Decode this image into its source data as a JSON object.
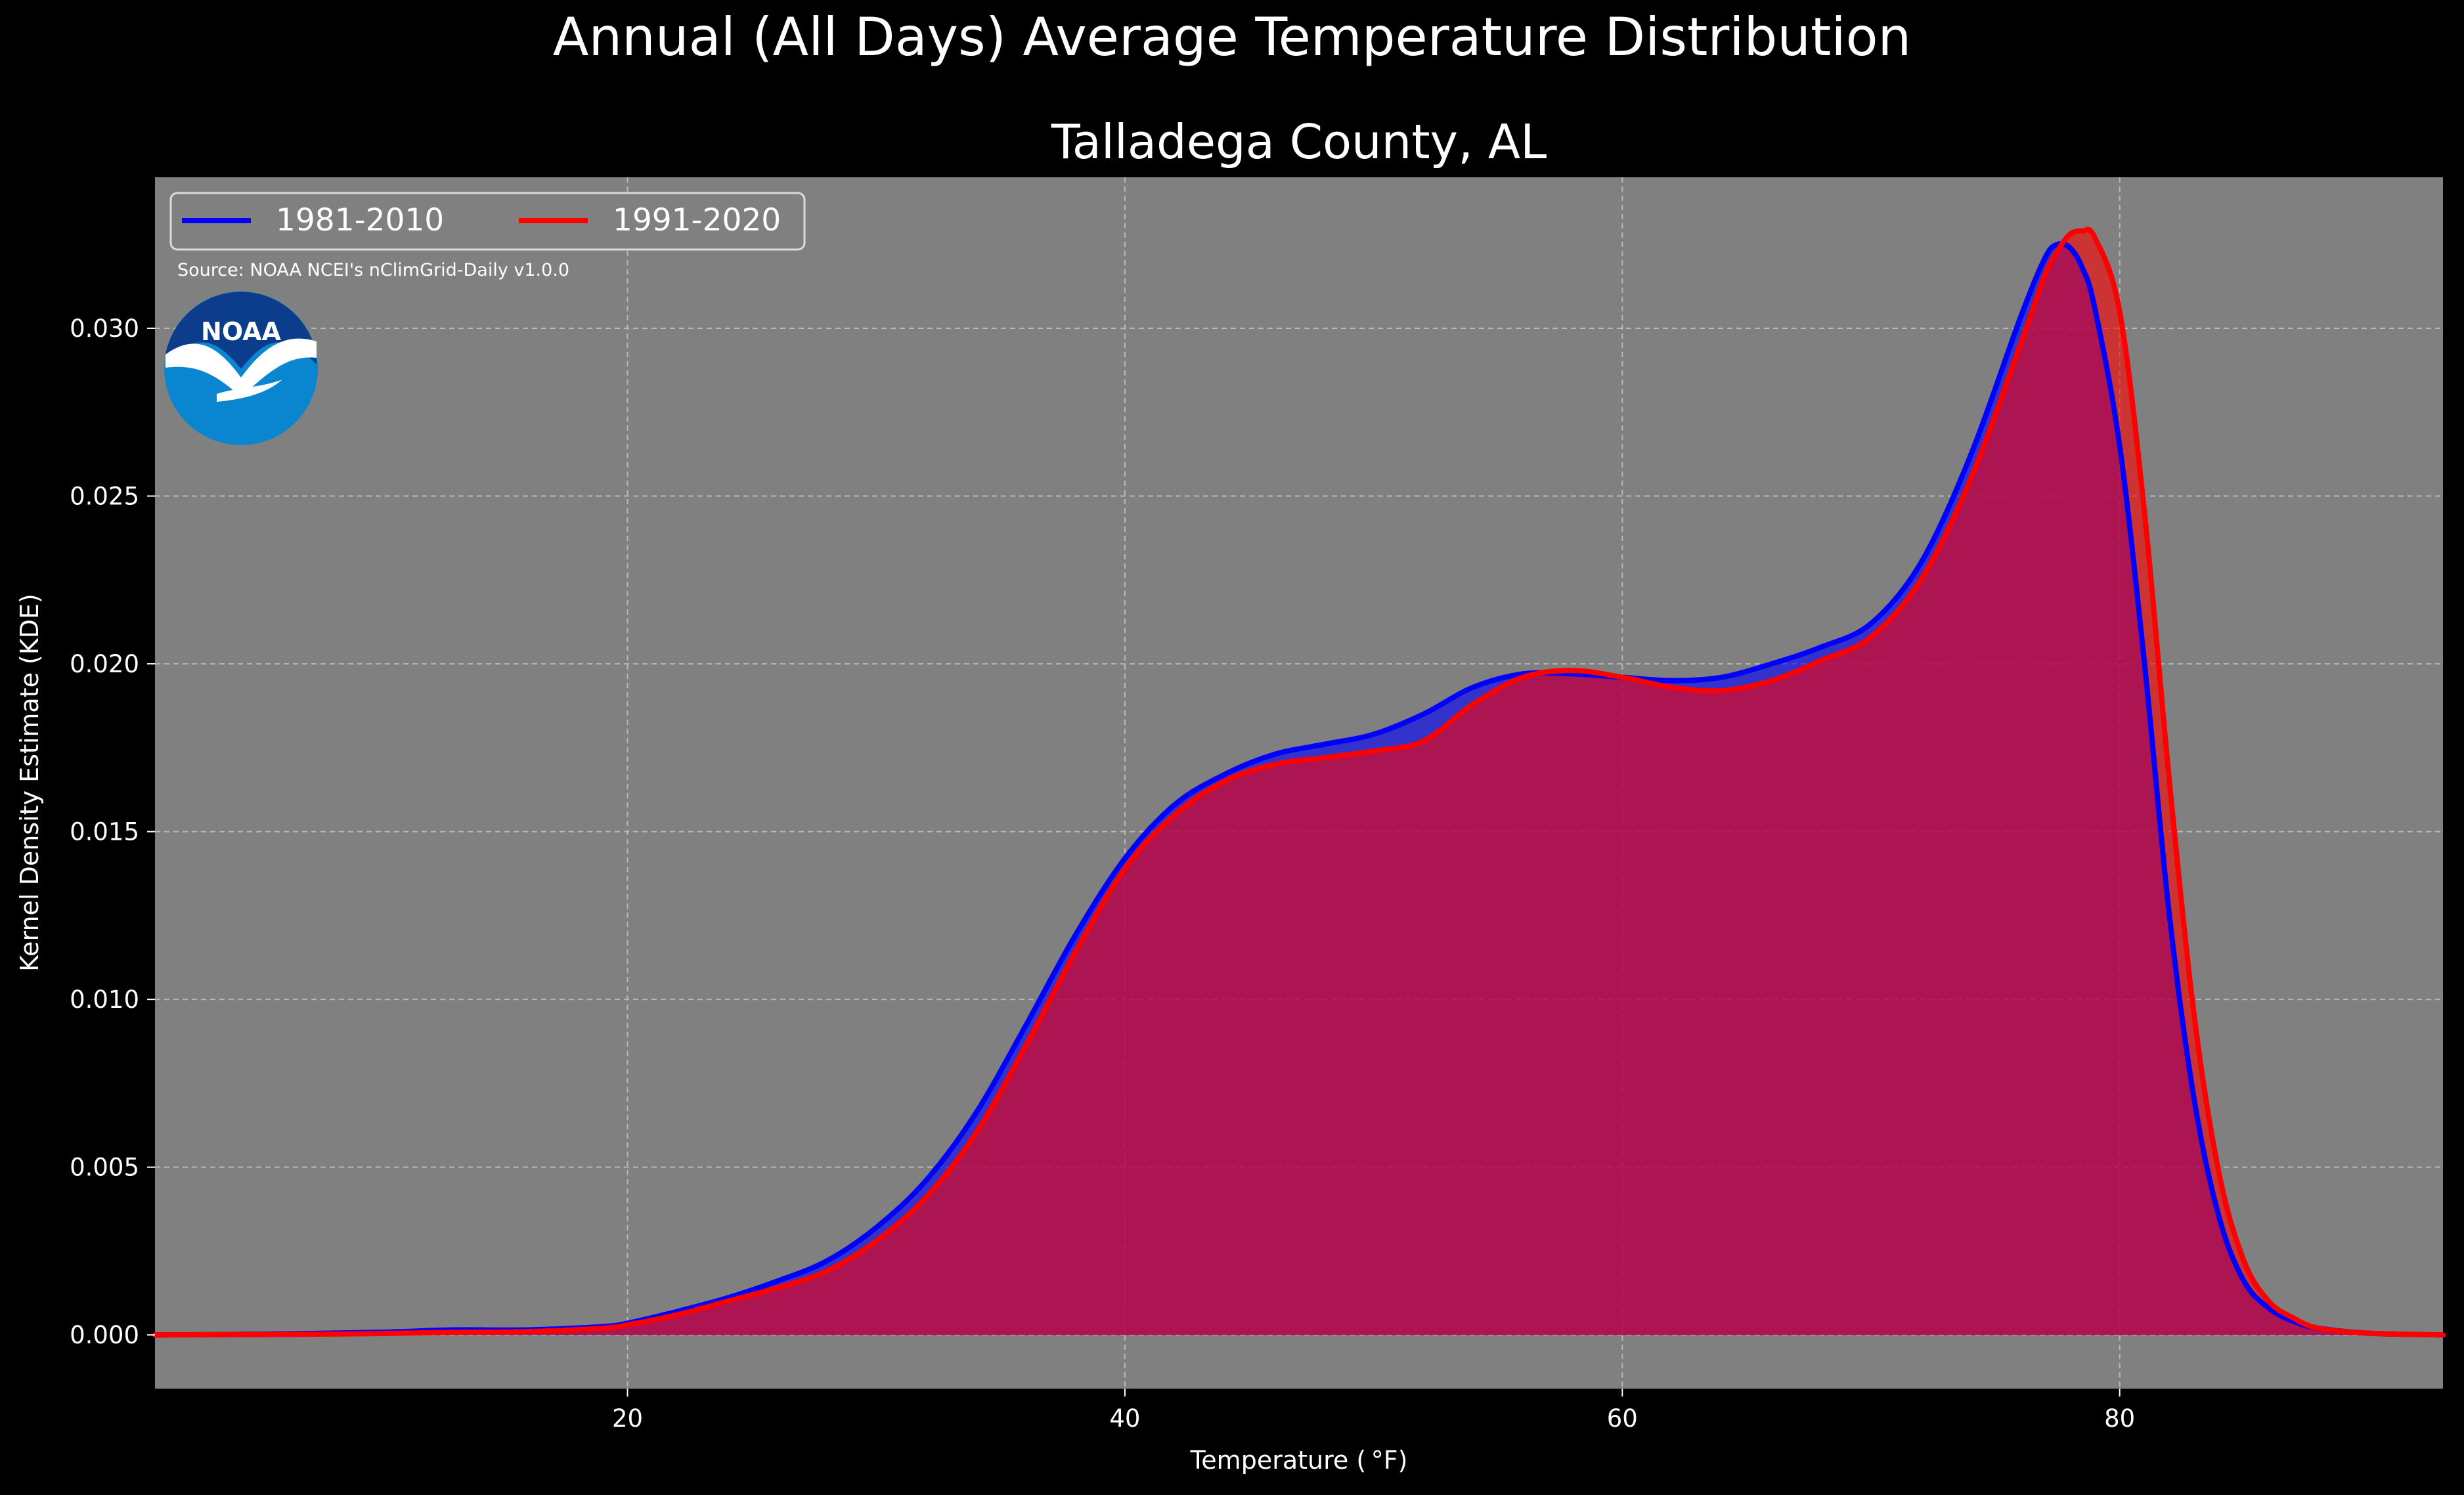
{
  "chart_data": {
    "type": "area",
    "suptitle": "Annual (All Days) Average Temperature Distribution",
    "title": "Talladega County, AL",
    "xlabel": "Temperature ( °F)",
    "ylabel": "Kernel Density Estimate (KDE)",
    "xlim": [
      1,
      93
    ],
    "ylim": [
      -0.0016,
      0.0345
    ],
    "x_ticks": [
      20,
      40,
      60,
      80
    ],
    "y_ticks": [
      0.0,
      0.005,
      0.01,
      0.015,
      0.02,
      0.025,
      0.03
    ],
    "y_tick_labels": [
      "0.000",
      "0.005",
      "0.010",
      "0.015",
      "0.020",
      "0.025",
      "0.030"
    ],
    "grid": true,
    "legend_position": "top-left",
    "source_note": "Source: NOAA NCEI's nClimGrid-Daily v1.0.0",
    "logo_text": "NOAA",
    "colors": {
      "figure_bg": "#000000",
      "axes_bg": "#808080",
      "series_1": "#0000ff",
      "series_2": "#ff0000",
      "fill_overlap": "#9e1f5e"
    },
    "x": [
      1,
      5,
      10,
      13,
      16,
      19,
      20,
      22,
      24,
      26,
      28,
      30,
      32,
      34,
      36,
      38,
      40,
      42,
      44,
      46,
      48,
      50,
      52,
      54,
      56,
      58,
      60,
      62,
      64,
      66,
      68,
      70,
      72,
      74,
      76,
      77,
      77.5,
      78,
      78.5,
      79,
      80,
      81,
      82,
      83,
      84,
      85,
      86,
      87,
      88,
      90,
      93
    ],
    "series": [
      {
        "name": "1981-2010",
        "values": [
          0.0,
          2e-05,
          8e-05,
          0.00015,
          0.00015,
          0.00025,
          0.00035,
          0.0007,
          0.0011,
          0.0016,
          0.0022,
          0.0032,
          0.0046,
          0.0066,
          0.0092,
          0.0119,
          0.0142,
          0.0158,
          0.0167,
          0.0173,
          0.0176,
          0.0179,
          0.0185,
          0.0193,
          0.0197,
          0.0197,
          0.0196,
          0.0195,
          0.0196,
          0.02,
          0.0205,
          0.0212,
          0.023,
          0.0262,
          0.0303,
          0.0321,
          0.0325,
          0.0324,
          0.0318,
          0.0306,
          0.0265,
          0.02,
          0.0125,
          0.007,
          0.0035,
          0.0016,
          0.0008,
          0.0004,
          0.0002,
          5e-05,
          0.0
        ]
      },
      {
        "name": "1991-2020",
        "values": [
          0.0,
          1e-05,
          4e-05,
          8e-05,
          0.0001,
          0.0002,
          0.0003,
          0.0006,
          0.001,
          0.0014,
          0.0019,
          0.0028,
          0.0041,
          0.006,
          0.0086,
          0.0114,
          0.0139,
          0.0155,
          0.0165,
          0.017,
          0.0172,
          0.0174,
          0.0177,
          0.0188,
          0.0196,
          0.0198,
          0.0196,
          0.0193,
          0.0192,
          0.0195,
          0.0201,
          0.0208,
          0.0225,
          0.0255,
          0.0295,
          0.0316,
          0.0323,
          0.0328,
          0.0329,
          0.0327,
          0.0305,
          0.0245,
          0.0165,
          0.0095,
          0.0048,
          0.0022,
          0.001,
          0.0005,
          0.0002,
          5e-05,
          0.0
        ]
      }
    ]
  }
}
